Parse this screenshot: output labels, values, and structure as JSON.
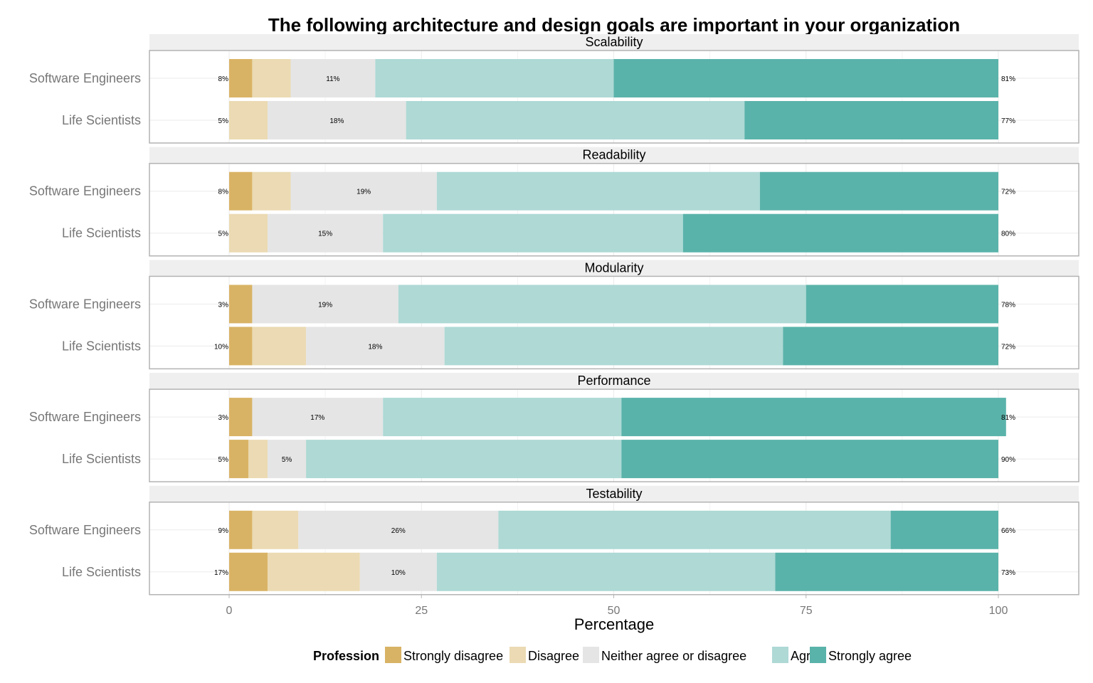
{
  "chart_data": {
    "type": "bar",
    "orientation": "horizontal-stacked",
    "title": "The following architecture and design goals are important in your organization",
    "xlabel": "Percentage",
    "xlim": [
      0,
      100
    ],
    "x_ticks": [
      "0",
      "25",
      "50",
      "75",
      "100"
    ],
    "legend": {
      "title": "Profession",
      "placement": "bottom",
      "entries": [
        "Strongly disagree",
        "Disagree",
        "Neither agree or disagree",
        "Agree",
        "Strongly agree"
      ]
    },
    "colors": {
      "strongly_disagree": "#d9b365",
      "disagree": "#ebdab3",
      "neutral": "#e5e5e5",
      "agree": "#aed9d5",
      "strongly_agree": "#5ab3aa",
      "strip_bg": "#efefef",
      "panel_border": "#b3b3b3",
      "grid": "#ebebeb"
    },
    "categories": [
      "Software Engineers",
      "Life Scientists"
    ],
    "panels": [
      {
        "name": "Scalability",
        "rows": [
          {
            "group": "Software Engineers",
            "values": [
              3,
              5,
              11,
              31,
              50
            ],
            "low_label": "8%",
            "mid_label": "11%",
            "high_label": "81%"
          },
          {
            "group": "Life Scientists",
            "values": [
              0,
              5,
              18,
              44,
              33
            ],
            "low_label": "5%",
            "mid_label": "18%",
            "high_label": "77%"
          }
        ]
      },
      {
        "name": "Readability",
        "rows": [
          {
            "group": "Software Engineers",
            "values": [
              3,
              5,
              19,
              42,
              31
            ],
            "low_label": "8%",
            "mid_label": "19%",
            "high_label": "72%"
          },
          {
            "group": "Life Scientists",
            "values": [
              0,
              5,
              15,
              39,
              41
            ],
            "low_label": "5%",
            "mid_label": "15%",
            "high_label": "80%"
          }
        ]
      },
      {
        "name": "Modularity",
        "rows": [
          {
            "group": "Software Engineers",
            "values": [
              3,
              0,
              19,
              53,
              25
            ],
            "low_label": "3%",
            "mid_label": "19%",
            "high_label": "78%"
          },
          {
            "group": "Life Scientists",
            "values": [
              3,
              7,
              18,
              44,
              28
            ],
            "low_label": "10%",
            "mid_label": "18%",
            "high_label": "72%"
          }
        ]
      },
      {
        "name": "Performance",
        "rows": [
          {
            "group": "Software Engineers",
            "values": [
              3,
              0,
              17,
              31,
              50
            ],
            "low_label": "3%",
            "mid_label": "17%",
            "high_label": "81%"
          },
          {
            "group": "Life Scientists",
            "values": [
              2.5,
              2.5,
              5,
              41,
              49
            ],
            "low_label": "5%",
            "mid_label": "5%",
            "high_label": "90%"
          }
        ]
      },
      {
        "name": "Testability",
        "rows": [
          {
            "group": "Software Engineers",
            "values": [
              3,
              6,
              26,
              51,
              14
            ],
            "low_label": "9%",
            "mid_label": "26%",
            "high_label": "66%"
          },
          {
            "group": "Life Scientists",
            "values": [
              5,
              12,
              10,
              44,
              29
            ],
            "low_label": "17%",
            "mid_label": "10%",
            "high_label": "73%"
          }
        ]
      }
    ]
  }
}
